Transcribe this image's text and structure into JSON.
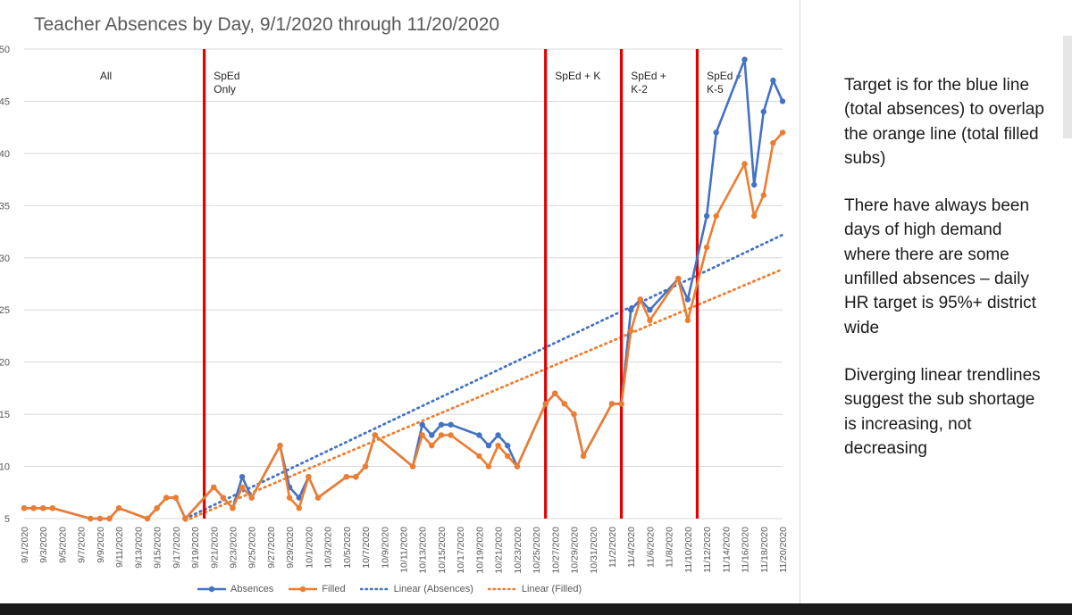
{
  "chart_data": {
    "type": "line",
    "title": "Teacher Absences by Day, 9/1/2020 through 11/20/2020",
    "xlabel": "",
    "ylabel": "",
    "ylim": [
      5,
      50
    ],
    "yticks": [
      5,
      10,
      15,
      20,
      25,
      30,
      35,
      40,
      45,
      50
    ],
    "grid": true,
    "legend_position": "bottom",
    "x_tick_labels": [
      "9/1/2020",
      "9/3/2020",
      "9/5/2020",
      "9/7/2020",
      "9/9/2020",
      "9/11/2020",
      "9/13/2020",
      "9/15/2020",
      "9/17/2020",
      "9/19/2020",
      "9/21/2020",
      "9/23/2020",
      "9/25/2020",
      "9/27/2020",
      "9/29/2020",
      "10/1/2020",
      "10/3/2020",
      "10/5/2020",
      "10/7/2020",
      "10/9/2020",
      "10/11/2020",
      "10/13/2020",
      "10/15/2020",
      "10/17/2020",
      "10/19/2020",
      "10/21/2020",
      "10/23/2020",
      "10/25/2020",
      "10/27/2020",
      "10/29/2020",
      "10/31/2020",
      "11/2/2020",
      "11/4/2020",
      "11/6/2020",
      "11/8/2020",
      "11/10/2020",
      "11/12/2020",
      "11/14/2020",
      "11/16/2020",
      "11/18/2020",
      "11/20/2020"
    ],
    "series": [
      {
        "name": "Absences",
        "color": "#4472c4",
        "points": [
          [
            "2020-09-01",
            6
          ],
          [
            "2020-09-02",
            6
          ],
          [
            "2020-09-03",
            6
          ],
          [
            "2020-09-04",
            6
          ],
          [
            "2020-09-08",
            5
          ],
          [
            "2020-09-09",
            5
          ],
          [
            "2020-09-10",
            5
          ],
          [
            "2020-09-11",
            6
          ],
          [
            "2020-09-14",
            5
          ],
          [
            "2020-09-15",
            6
          ],
          [
            "2020-09-16",
            7
          ],
          [
            "2020-09-17",
            7
          ],
          [
            "2020-09-18",
            5
          ],
          [
            "2020-09-21",
            8
          ],
          [
            "2020-09-22",
            7
          ],
          [
            "2020-09-23",
            6
          ],
          [
            "2020-09-24",
            9
          ],
          [
            "2020-09-25",
            7
          ],
          [
            "2020-09-28",
            12
          ],
          [
            "2020-09-29",
            8
          ],
          [
            "2020-09-30",
            7
          ],
          [
            "2020-10-01",
            9
          ],
          [
            "2020-10-02",
            7
          ],
          [
            "2020-10-05",
            9
          ],
          [
            "2020-10-06",
            9
          ],
          [
            "2020-10-07",
            10
          ],
          [
            "2020-10-08",
            13
          ],
          [
            "2020-10-12",
            10
          ],
          [
            "2020-10-13",
            14
          ],
          [
            "2020-10-14",
            13
          ],
          [
            "2020-10-15",
            14
          ],
          [
            "2020-10-16",
            14
          ],
          [
            "2020-10-19",
            13
          ],
          [
            "2020-10-20",
            12
          ],
          [
            "2020-10-21",
            13
          ],
          [
            "2020-10-22",
            12
          ],
          [
            "2020-10-23",
            10
          ],
          [
            "2020-10-26",
            16
          ],
          [
            "2020-10-27",
            17
          ],
          [
            "2020-10-28",
            16
          ],
          [
            "2020-10-29",
            15
          ],
          [
            "2020-10-30",
            11
          ],
          [
            "2020-11-02",
            16
          ],
          [
            "2020-11-03",
            16
          ],
          [
            "2020-11-04",
            25
          ],
          [
            "2020-11-05",
            26
          ],
          [
            "2020-11-06",
            25
          ],
          [
            "2020-11-09",
            28
          ],
          [
            "2020-11-10",
            26
          ],
          [
            "2020-11-12",
            34
          ],
          [
            "2020-11-13",
            42
          ],
          [
            "2020-11-16",
            49
          ],
          [
            "2020-11-17",
            37
          ],
          [
            "2020-11-18",
            44
          ],
          [
            "2020-11-19",
            47
          ],
          [
            "2020-11-20",
            45
          ]
        ]
      },
      {
        "name": "Filled",
        "color": "#ed7d31",
        "points": [
          [
            "2020-09-01",
            6
          ],
          [
            "2020-09-02",
            6
          ],
          [
            "2020-09-03",
            6
          ],
          [
            "2020-09-04",
            6
          ],
          [
            "2020-09-08",
            5
          ],
          [
            "2020-09-09",
            5
          ],
          [
            "2020-09-10",
            5
          ],
          [
            "2020-09-11",
            6
          ],
          [
            "2020-09-14",
            5
          ],
          [
            "2020-09-15",
            6
          ],
          [
            "2020-09-16",
            7
          ],
          [
            "2020-09-17",
            7
          ],
          [
            "2020-09-18",
            5
          ],
          [
            "2020-09-21",
            8
          ],
          [
            "2020-09-22",
            7
          ],
          [
            "2020-09-23",
            6
          ],
          [
            "2020-09-24",
            8
          ],
          [
            "2020-09-25",
            7
          ],
          [
            "2020-09-28",
            12
          ],
          [
            "2020-09-29",
            7
          ],
          [
            "2020-09-30",
            6
          ],
          [
            "2020-10-01",
            9
          ],
          [
            "2020-10-02",
            7
          ],
          [
            "2020-10-05",
            9
          ],
          [
            "2020-10-06",
            9
          ],
          [
            "2020-10-07",
            10
          ],
          [
            "2020-10-08",
            13
          ],
          [
            "2020-10-12",
            10
          ],
          [
            "2020-10-13",
            13
          ],
          [
            "2020-10-14",
            12
          ],
          [
            "2020-10-15",
            13
          ],
          [
            "2020-10-16",
            13
          ],
          [
            "2020-10-19",
            11
          ],
          [
            "2020-10-20",
            10
          ],
          [
            "2020-10-21",
            12
          ],
          [
            "2020-10-22",
            11
          ],
          [
            "2020-10-23",
            10
          ],
          [
            "2020-10-26",
            16
          ],
          [
            "2020-10-27",
            17
          ],
          [
            "2020-10-28",
            16
          ],
          [
            "2020-10-29",
            15
          ],
          [
            "2020-10-30",
            11
          ],
          [
            "2020-11-02",
            16
          ],
          [
            "2020-11-03",
            16
          ],
          [
            "2020-11-04",
            23
          ],
          [
            "2020-11-05",
            26
          ],
          [
            "2020-11-06",
            24
          ],
          [
            "2020-11-09",
            28
          ],
          [
            "2020-11-10",
            24
          ],
          [
            "2020-11-12",
            31
          ],
          [
            "2020-11-13",
            34
          ],
          [
            "2020-11-16",
            39
          ],
          [
            "2020-11-17",
            34
          ],
          [
            "2020-11-18",
            36
          ],
          [
            "2020-11-19",
            41
          ],
          [
            "2020-11-20",
            42
          ]
        ]
      }
    ],
    "trendlines": [
      {
        "name": "Linear (Absences)",
        "color": "#4472c4",
        "start": [
          "2020-09-18",
          5
        ],
        "end": [
          "2020-11-20",
          32.2
        ]
      },
      {
        "name": "Linear (Filled)",
        "color": "#ed7d31",
        "start": [
          "2020-09-18",
          4.8
        ],
        "end": [
          "2020-11-20",
          28.9
        ]
      }
    ],
    "phase_markers": [
      {
        "date": "2020-09-20",
        "color": "#e00000"
      },
      {
        "date": "2020-10-26",
        "color": "#e00000"
      },
      {
        "date": "2020-11-03",
        "color": "#e00000"
      },
      {
        "date": "2020-11-11",
        "color": "#e00000"
      }
    ],
    "phase_labels": [
      {
        "date": "2020-09-09",
        "lines": [
          "All"
        ]
      },
      {
        "date": "2020-09-21",
        "lines": [
          "SpEd",
          "Only"
        ]
      },
      {
        "date": "2020-10-27",
        "lines": [
          "SpEd + K"
        ]
      },
      {
        "date": "2020-11-04",
        "lines": [
          "SpEd +",
          "K-2"
        ]
      },
      {
        "date": "2020-11-12",
        "lines": [
          "SpEd +",
          "K-5"
        ]
      }
    ]
  },
  "legend": {
    "absences": "Absences",
    "filled": "Filled",
    "linear_absences": "Linear (Absences)",
    "linear_filled": "Linear (Filled)"
  },
  "notes": [
    "Target is for the blue line (total absences) to overlap the orange line (total filled subs)",
    "There have always been days of high demand where there are some unfilled absences – daily HR target is 95%+ district wide",
    "Diverging linear trendlines suggest the sub shortage is increasing, not decreasing"
  ]
}
